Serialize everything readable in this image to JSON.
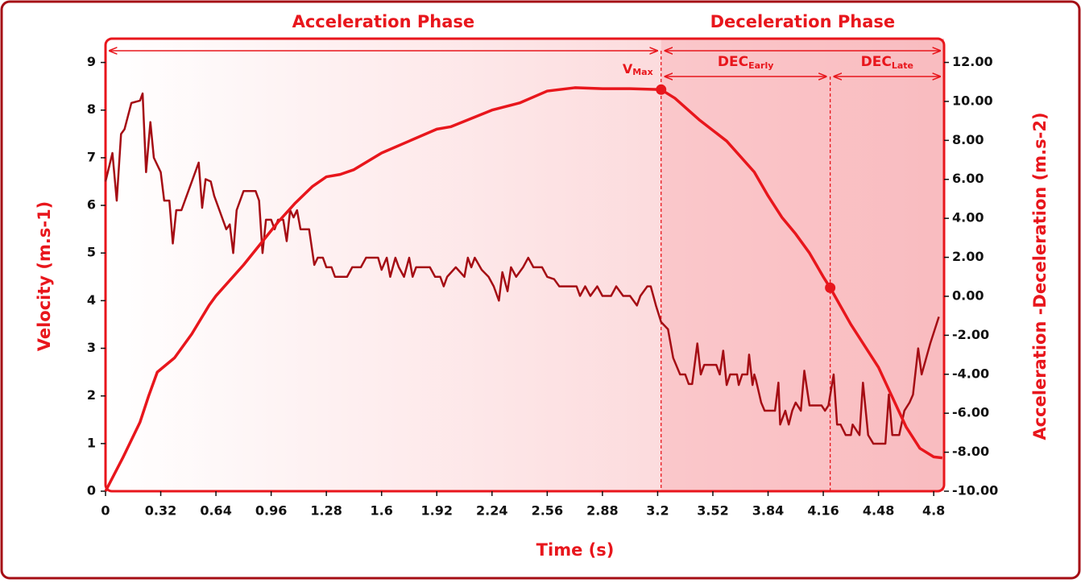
{
  "chart_data": {
    "type": "line",
    "xlabel": "Time (s)",
    "ylabel": "Velocity (m.s-1)",
    "y2label": "Acceleration -Deceleration (m.s-2)",
    "xlim": [
      0,
      4.86
    ],
    "ylim": [
      0,
      9.5
    ],
    "y2lim": [
      -10,
      13.22
    ],
    "xticks": [
      0,
      0.32,
      0.64,
      0.96,
      1.28,
      1.6,
      1.92,
      2.24,
      2.56,
      2.88,
      3.2,
      3.52,
      3.84,
      4.16,
      4.48,
      4.8
    ],
    "yticks": [
      0,
      1,
      2,
      3,
      4,
      5,
      6,
      7,
      8,
      9
    ],
    "y2ticks": [
      {
        "value": -10,
        "label": "-10.00"
      },
      {
        "value": -8,
        "label": "-8.00"
      },
      {
        "value": -6,
        "label": "-6.00"
      },
      {
        "value": -4,
        "label": "-4.00"
      },
      {
        "value": -2,
        "label": "-2.00"
      },
      {
        "value": 0,
        "label": "0.00"
      },
      {
        "value": 2,
        "label": "2.00"
      },
      {
        "value": 4,
        "label": "4.00"
      },
      {
        "value": 6,
        "label": "6.00"
      },
      {
        "value": 8,
        "label": "8.00"
      },
      {
        "value": 10,
        "label": "10.00"
      },
      {
        "value": 12,
        "label": "12.00"
      }
    ],
    "phases": [
      {
        "label": "Acceleration Phase",
        "start": 0,
        "end": 3.22
      },
      {
        "label": "Deceleration Phase",
        "start": 3.22,
        "end": 4.86
      }
    ],
    "vmax_label": {
      "label": "V",
      "sub": "Max"
    },
    "subphases": [
      {
        "label": "DEC",
        "sub": "Early",
        "start": 3.22,
        "end": 4.2
      },
      {
        "label": "DEC",
        "sub": "Late",
        "start": 4.2,
        "end": 4.86
      }
    ],
    "markers": [
      {
        "x": 3.22,
        "y": 8.43
      },
      {
        "x": 4.2,
        "y": 4.27
      }
    ],
    "series": [
      {
        "color": "#e8161c",
        "axis": "y",
        "x": [
          0,
          0.1,
          0.2,
          0.25,
          0.3,
          0.4,
          0.5,
          0.6,
          0.64,
          0.8,
          0.9,
          1.0,
          1.1,
          1.2,
          1.28,
          1.36,
          1.44,
          1.6,
          1.76,
          1.92,
          2.0,
          2.24,
          2.4,
          2.56,
          2.72,
          2.88,
          3.04,
          3.22,
          3.3,
          3.44,
          3.6,
          3.76,
          3.84,
          3.92,
          4.0,
          4.08,
          4.16,
          4.2,
          4.32,
          4.48,
          4.64,
          4.72,
          4.8,
          4.85
        ],
        "values": [
          0,
          0.7,
          1.45,
          2.0,
          2.5,
          2.8,
          3.3,
          3.9,
          4.1,
          4.75,
          5.2,
          5.65,
          6.05,
          6.4,
          6.6,
          6.65,
          6.75,
          7.1,
          7.35,
          7.6,
          7.65,
          8.0,
          8.15,
          8.4,
          8.47,
          8.45,
          8.45,
          8.43,
          8.25,
          7.8,
          7.35,
          6.7,
          6.2,
          5.75,
          5.4,
          5.0,
          4.5,
          4.27,
          3.5,
          2.6,
          1.35,
          0.9,
          0.72,
          0.7
        ]
      },
      {
        "color": "#a50d14",
        "axis": "y2",
        "x": [
          0,
          0.04,
          0.065,
          0.09,
          0.11,
          0.15,
          0.2,
          0.215,
          0.235,
          0.26,
          0.28,
          0.32,
          0.34,
          0.37,
          0.39,
          0.41,
          0.44,
          0.54,
          0.56,
          0.58,
          0.61,
          0.63,
          0.66,
          0.7,
          0.72,
          0.74,
          0.76,
          0.8,
          0.87,
          0.89,
          0.91,
          0.93,
          0.96,
          0.98,
          1.0,
          1.03,
          1.05,
          1.07,
          1.09,
          1.11,
          1.13,
          1.18,
          1.21,
          1.23,
          1.26,
          1.28,
          1.31,
          1.33,
          1.4,
          1.43,
          1.48,
          1.51,
          1.58,
          1.6,
          1.63,
          1.65,
          1.68,
          1.7,
          1.73,
          1.76,
          1.78,
          1.8,
          1.88,
          1.91,
          1.94,
          1.96,
          1.98,
          2.03,
          2.08,
          2.1,
          2.12,
          2.14,
          2.18,
          2.22,
          2.25,
          2.28,
          2.3,
          2.33,
          2.35,
          2.38,
          2.42,
          2.45,
          2.48,
          2.53,
          2.56,
          2.6,
          2.63,
          2.73,
          2.75,
          2.78,
          2.81,
          2.85,
          2.88,
          2.93,
          2.96,
          3.0,
          3.04,
          3.08,
          3.1,
          3.14,
          3.16,
          3.19,
          3.22,
          3.26,
          3.29,
          3.33,
          3.36,
          3.38,
          3.4,
          3.43,
          3.45,
          3.47,
          3.54,
          3.56,
          3.58,
          3.6,
          3.62,
          3.66,
          3.67,
          3.69,
          3.72,
          3.73,
          3.75,
          3.76,
          3.77,
          3.8,
          3.82,
          3.86,
          3.88,
          3.9,
          3.91,
          3.94,
          3.96,
          3.98,
          4.0,
          4.03,
          4.05,
          4.08,
          4.11,
          4.15,
          4.17,
          4.19,
          4.22,
          4.24,
          4.26,
          4.29,
          4.32,
          4.33,
          4.37,
          4.39,
          4.42,
          4.45,
          4.52,
          4.54,
          4.56,
          4.6,
          4.63,
          4.66,
          4.68,
          4.71,
          4.73,
          4.78,
          4.83
        ],
        "values": [
          5.89,
          7.35,
          4.91,
          8.33,
          8.57,
          9.92,
          10.04,
          10.41,
          6.37,
          8.94,
          7.11,
          6.37,
          4.91,
          4.91,
          2.71,
          4.42,
          4.42,
          6.86,
          4.54,
          6.01,
          5.89,
          5.15,
          4.42,
          3.44,
          3.69,
          2.22,
          4.42,
          5.4,
          5.4,
          4.91,
          2.22,
          3.93,
          3.93,
          3.44,
          3.93,
          3.93,
          2.83,
          4.42,
          4.05,
          4.42,
          3.44,
          3.44,
          1.61,
          1.98,
          1.98,
          1.49,
          1.49,
          1.0,
          1.0,
          1.49,
          1.49,
          1.98,
          1.98,
          1.36,
          1.98,
          1.0,
          1.98,
          1.49,
          1.0,
          1.98,
          1.0,
          1.49,
          1.49,
          1.0,
          1.0,
          0.51,
          1.0,
          1.49,
          1.0,
          1.98,
          1.49,
          1.98,
          1.36,
          1.0,
          0.51,
          -0.22,
          1.24,
          0.26,
          1.49,
          1.0,
          1.49,
          1.98,
          1.49,
          1.49,
          1.0,
          0.88,
          0.51,
          0.51,
          0.02,
          0.51,
          0.02,
          0.51,
          0.02,
          0.02,
          0.51,
          0.02,
          0.02,
          -0.47,
          0.02,
          0.51,
          0.51,
          -0.47,
          -1.32,
          -1.69,
          -3.16,
          -4.01,
          -4.01,
          -4.5,
          -4.5,
          -2.42,
          -4.01,
          -3.52,
          -3.52,
          -4.01,
          -2.79,
          -4.55,
          -4.01,
          -4.01,
          -4.55,
          -4.01,
          -4.01,
          -2.99,
          -4.55,
          -4.01,
          -4.3,
          -5.45,
          -5.87,
          -5.87,
          -5.87,
          -4.43,
          -6.58,
          -5.87,
          -6.58,
          -5.87,
          -5.45,
          -5.87,
          -3.82,
          -5.6,
          -5.6,
          -5.6,
          -5.87,
          -5.6,
          -4.01,
          -6.58,
          -6.58,
          -7.12,
          -7.12,
          -6.58,
          -7.12,
          -4.43,
          -7.12,
          -7.56,
          -7.56,
          -5.04,
          -7.12,
          -7.12,
          -5.87,
          -5.45,
          -5.04,
          -2.67,
          -4.01,
          -2.42,
          -1.05
        ]
      }
    ]
  }
}
